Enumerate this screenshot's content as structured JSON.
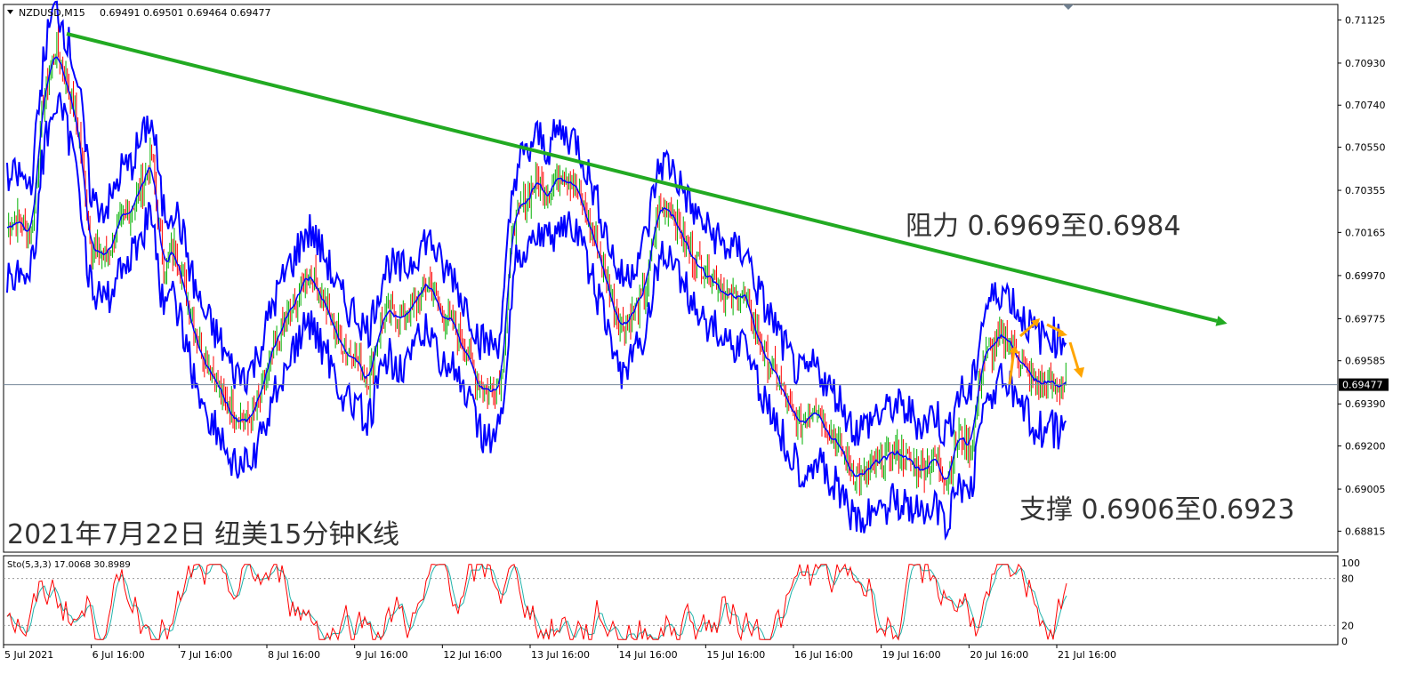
{
  "header": {
    "symbol_text": "NZDUSD,M15",
    "ohlc_text": "0.69491 0.69501 0.69464 0.69477"
  },
  "sto_header": {
    "text": "Sto(5,3,3) 17.0068 30.8989"
  },
  "chart_title": "2021年7月22日 纽美15分钟K线",
  "annotations": {
    "resistance": "阻力 0.6969至0.6984",
    "support": "支撑 0.6906至0.6923"
  },
  "colors": {
    "band": "#0000ff",
    "trendline": "#22aa22",
    "arrow": "#ffa500",
    "bull": "#00b000",
    "bear": "#ff0000",
    "sto_main": "#ff0000",
    "sto_signal": "#20b2aa"
  },
  "chart_data": {
    "type": "line",
    "price_axis": {
      "ticks": [
        "0.71125",
        "0.70930",
        "0.70740",
        "0.70550",
        "0.70355",
        "0.70165",
        "0.69970",
        "0.69775",
        "0.69585",
        "0.69390",
        "0.69200",
        "0.69005",
        "0.68815"
      ],
      "ylim": [
        0.6872,
        0.71195
      ],
      "current_price": "0.69477"
    },
    "time_axis": {
      "labels": [
        "5 Jul 2021",
        "6 Jul 16:00",
        "7 Jul 16:00",
        "8 Jul 16:00",
        "9 Jul 16:00",
        "12 Jul 16:00",
        "13 Jul 16:00",
        "14 Jul 16:00",
        "15 Jul 16:00",
        "16 Jul 16:00",
        "19 Jul 16:00",
        "20 Jul 16:00",
        "21 Jul 16:00"
      ]
    },
    "price_series": {
      "name": "NZDUSD,M15",
      "x": [
        0,
        1,
        2,
        3,
        4,
        5,
        6,
        7,
        8,
        9,
        10,
        11,
        12,
        13,
        14,
        15,
        16,
        17,
        18,
        19,
        20,
        21,
        22,
        23,
        24,
        25,
        26,
        27,
        28,
        29,
        30,
        31,
        32,
        33,
        34,
        35,
        36,
        37,
        38,
        39,
        40,
        41,
        42,
        43,
        44,
        45,
        46,
        47,
        48,
        49,
        50,
        51,
        52,
        53,
        54,
        55,
        56,
        57,
        58,
        59,
        60,
        61,
        62,
        63,
        64,
        65,
        66,
        67,
        68,
        69,
        70,
        71,
        72,
        73,
        74,
        75,
        76,
        77,
        78,
        79,
        80,
        81,
        82,
        83,
        84,
        85,
        86,
        87,
        88,
        89,
        90,
        91,
        92,
        93,
        94,
        95,
        96,
        97
      ],
      "values": [
        0.702,
        0.7022,
        0.7015,
        0.7075,
        0.71,
        0.7085,
        0.706,
        0.701,
        0.7005,
        0.7015,
        0.7025,
        0.7035,
        0.705,
        0.7,
        0.701,
        0.6985,
        0.6965,
        0.6955,
        0.694,
        0.6935,
        0.693,
        0.694,
        0.696,
        0.6975,
        0.6985,
        0.7,
        0.699,
        0.6975,
        0.6965,
        0.696,
        0.695,
        0.6975,
        0.698,
        0.6978,
        0.6985,
        0.6995,
        0.698,
        0.6975,
        0.6965,
        0.695,
        0.6945,
        0.695,
        0.702,
        0.703,
        0.704,
        0.7035,
        0.7045,
        0.704,
        0.7025,
        0.701,
        0.699,
        0.6975,
        0.698,
        0.699,
        0.7025,
        0.703,
        0.7015,
        0.7005,
        0.7,
        0.6995,
        0.6985,
        0.699,
        0.6975,
        0.696,
        0.695,
        0.6935,
        0.693,
        0.694,
        0.693,
        0.692,
        0.691,
        0.6905,
        0.691,
        0.6915,
        0.6918,
        0.6912,
        0.691,
        0.6915,
        0.6905,
        0.6925,
        0.692,
        0.696,
        0.6965,
        0.697,
        0.696,
        0.695,
        0.6948,
        0.6948,
        0.6948,
        0.6948,
        0.6948,
        0.6948,
        0.6948,
        0.6948,
        0.6948,
        0.6948,
        0.6948,
        0.6948
      ]
    },
    "trendline": {
      "from": [
        0,
        0.7106
      ],
      "to": [
        88,
        0.69765
      ]
    },
    "stochastic": {
      "name": "Sto(5,3,3)",
      "main": 17.0068,
      "signal": 30.8989,
      "levels": [
        20,
        80
      ],
      "ticks": [
        "100",
        "80",
        "20",
        "0"
      ],
      "ylim": [
        0,
        100
      ]
    }
  }
}
